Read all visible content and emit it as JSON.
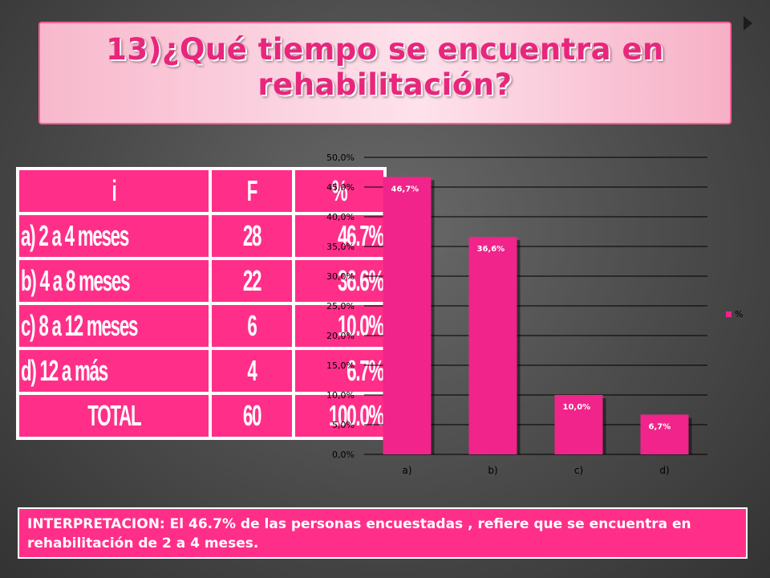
{
  "slide": {
    "title": "13)¿Qué tiempo se encuentra en rehabilitación?",
    "interpretation": "INTERPRETACION: El 46.7% de las personas encuestadas , refiere que se encuentra en rehabilitación de 2 a 4 meses."
  },
  "table": {
    "headers": [
      "i",
      "F",
      "%"
    ],
    "rows": [
      [
        "a) 2 a 4 meses",
        "28",
        "46.7%"
      ],
      [
        "b) 4 a 8 meses",
        "22",
        "36.6%"
      ],
      [
        "c) 8 a 12 meses",
        "6",
        "10.0%"
      ],
      [
        "d) 12 a más",
        "4",
        "6.7%"
      ],
      [
        "TOTAL",
        "60",
        "100.0%"
      ]
    ]
  },
  "chart_data": {
    "type": "bar",
    "categories": [
      "a)",
      "b)",
      "c)",
      "d)"
    ],
    "series": [
      {
        "name": "%",
        "values": [
          46.7,
          36.6,
          10.0,
          6.7
        ],
        "labels": [
          "46,7%",
          "36,6%",
          "10,0%",
          "6,7%"
        ]
      }
    ],
    "ylim": [
      0,
      50
    ],
    "yticks": [
      "0,0%",
      "5,0%",
      "10,0%",
      "15,0%",
      "20,0%",
      "25,0%",
      "30,0%",
      "35,0%",
      "40,0%",
      "45,0%",
      "50,0%"
    ],
    "grid": true,
    "legend": "right",
    "colors": {
      "bar": "#f0248a",
      "grid": "#000000",
      "label": "#ffffff"
    }
  }
}
